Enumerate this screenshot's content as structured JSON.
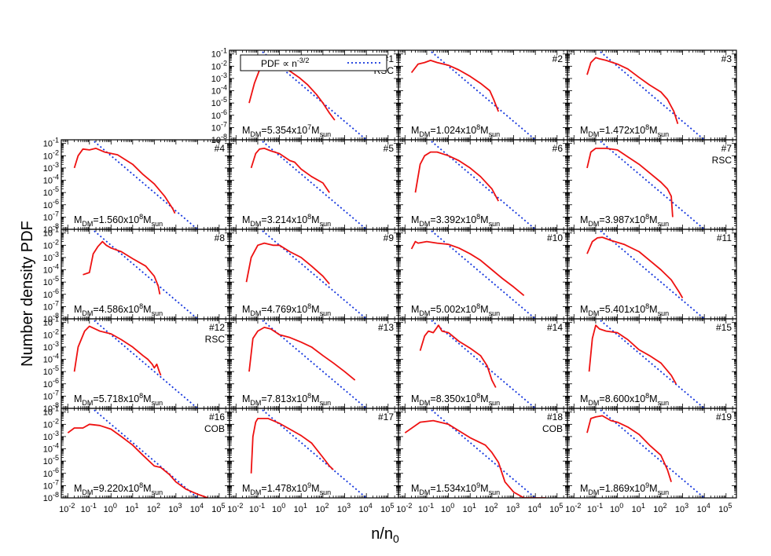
{
  "figure": {
    "ylabel": "Number density PDF",
    "xlabel_main": "n/n",
    "xlabel_sub": "0"
  },
  "legend": {
    "text_main": "PDF ∝ n",
    "text_sup": "-3/2"
  },
  "colors": {
    "pdf": "#ee1111",
    "powerlaw": "#1133dd",
    "axis": "#000000"
  },
  "chart_data": {
    "type": "line",
    "xscale": "log",
    "yscale": "log",
    "xlim": [
      0.005,
      300000
    ],
    "ylim": [
      1e-08,
      0.2
    ],
    "x_ticks": [
      "10^-2",
      "10^-1",
      "10^0",
      "10^1",
      "10^2",
      "10^3",
      "10^4",
      "10^5"
    ],
    "y_ticks": [
      "10^-1",
      "10^-2",
      "10^-3",
      "10^-4",
      "10^-5",
      "10^-6",
      "10^-7",
      "10^-8"
    ],
    "powerlaw": {
      "slope": -1.5,
      "amplitude": 0.01
    },
    "series": [
      {
        "id": "1",
        "annotation": "RSC",
        "mass_mantissa": "5.354",
        "mass_exp": "7",
        "points": [
          [
            0.04,
            1e-05
          ],
          [
            0.07,
            0.0004
          ],
          [
            0.12,
            0.005
          ],
          [
            0.2,
            0.03
          ],
          [
            0.3,
            0.045
          ],
          [
            0.45,
            0.04
          ],
          [
            0.7,
            0.022
          ],
          [
            1.2,
            0.012
          ],
          [
            3,
            0.004
          ],
          [
            8,
            0.0012
          ],
          [
            20,
            0.0003
          ],
          [
            50,
            5e-05
          ],
          [
            100,
            1e-05
          ],
          [
            200,
            1.5e-06
          ],
          [
            350,
            4e-07
          ]
        ]
      },
      {
        "id": "2",
        "annotation": "",
        "mass_mantissa": "1.024",
        "mass_exp": "8",
        "points": [
          [
            0.02,
            0.003
          ],
          [
            0.04,
            0.015
          ],
          [
            0.08,
            0.02
          ],
          [
            0.15,
            0.03
          ],
          [
            0.3,
            0.02
          ],
          [
            1,
            0.012
          ],
          [
            3,
            0.005
          ],
          [
            10,
            0.0015
          ],
          [
            30,
            0.0004
          ],
          [
            80,
            0.0001
          ],
          [
            120,
            2e-05
          ],
          [
            200,
            2e-06
          ]
        ]
      },
      {
        "id": "3",
        "annotation": "",
        "mass_mantissa": "1.472",
        "mass_exp": "8",
        "points": [
          [
            0.04,
            0.002
          ],
          [
            0.06,
            0.02
          ],
          [
            0.1,
            0.05
          ],
          [
            0.15,
            0.04
          ],
          [
            0.3,
            0.03
          ],
          [
            1,
            0.015
          ],
          [
            3,
            0.006
          ],
          [
            10,
            0.0012
          ],
          [
            30,
            0.0003
          ],
          [
            100,
            8e-05
          ],
          [
            200,
            2e-05
          ],
          [
            400,
            2e-06
          ],
          [
            600,
            2e-07
          ]
        ]
      },
      {
        "id": "4",
        "annotation": "",
        "mass_mantissa": "1.560",
        "mass_exp": "8",
        "points": [
          [
            0.02,
            0.001
          ],
          [
            0.03,
            0.01
          ],
          [
            0.05,
            0.035
          ],
          [
            0.1,
            0.03
          ],
          [
            0.2,
            0.04
          ],
          [
            0.5,
            0.02
          ],
          [
            2,
            0.012
          ],
          [
            10,
            0.002
          ],
          [
            30,
            0.0003
          ],
          [
            100,
            5e-05
          ],
          [
            300,
            5e-06
          ],
          [
            700,
            5e-07
          ],
          [
            900,
            2e-07
          ]
        ]
      },
      {
        "id": "5",
        "annotation": "",
        "mass_mantissa": "3.214",
        "mass_exp": "8",
        "points": [
          [
            0.05,
            0.001
          ],
          [
            0.08,
            0.015
          ],
          [
            0.12,
            0.035
          ],
          [
            0.2,
            0.04
          ],
          [
            0.4,
            0.025
          ],
          [
            1,
            0.015
          ],
          [
            3,
            0.004
          ],
          [
            5,
            0.003
          ],
          [
            10,
            0.0008
          ],
          [
            30,
            0.0002
          ],
          [
            100,
            6e-05
          ],
          [
            200,
            1e-05
          ]
        ]
      },
      {
        "id": "6",
        "annotation": "",
        "mass_mantissa": "3.392",
        "mass_exp": "8",
        "points": [
          [
            0.03,
            1e-05
          ],
          [
            0.05,
            0.002
          ],
          [
            0.08,
            0.01
          ],
          [
            0.15,
            0.02
          ],
          [
            0.3,
            0.02
          ],
          [
            1,
            0.01
          ],
          [
            3,
            0.004
          ],
          [
            10,
            0.001
          ],
          [
            30,
            0.0002
          ],
          [
            100,
            2e-05
          ],
          [
            200,
            2e-06
          ]
        ]
      },
      {
        "id": "7",
        "annotation": "RSC",
        "mass_mantissa": "3.987",
        "mass_exp": "8",
        "points": [
          [
            0.04,
            0.001
          ],
          [
            0.06,
            0.02
          ],
          [
            0.1,
            0.04
          ],
          [
            0.3,
            0.04
          ],
          [
            1,
            0.03
          ],
          [
            3,
            0.008
          ],
          [
            10,
            0.002
          ],
          [
            30,
            0.0004
          ],
          [
            100,
            7e-05
          ],
          [
            200,
            2e-05
          ],
          [
            300,
            5e-06
          ],
          [
            350,
            1e-07
          ]
        ]
      },
      {
        "id": "8",
        "annotation": "",
        "mass_mantissa": "4.586",
        "mass_exp": "8",
        "points": [
          [
            0.05,
            4e-05
          ],
          [
            0.1,
            6e-05
          ],
          [
            0.15,
            0.002
          ],
          [
            0.25,
            0.008
          ],
          [
            0.4,
            0.02
          ],
          [
            0.6,
            0.01
          ],
          [
            1,
            0.006
          ],
          [
            3,
            0.003
          ],
          [
            10,
            0.0008
          ],
          [
            40,
            0.0002
          ],
          [
            100,
            3e-05
          ],
          [
            150,
            5e-06
          ],
          [
            180,
            1e-06
          ]
        ]
      },
      {
        "id": "9",
        "annotation": "",
        "mass_mantissa": "4.769",
        "mass_exp": "8",
        "points": [
          [
            0.03,
            1e-05
          ],
          [
            0.05,
            0.001
          ],
          [
            0.1,
            0.01
          ],
          [
            0.2,
            0.015
          ],
          [
            0.5,
            0.01
          ],
          [
            1,
            0.01
          ],
          [
            3,
            0.003
          ],
          [
            10,
            0.001
          ],
          [
            30,
            0.0002
          ],
          [
            100,
            3e-05
          ],
          [
            200,
            7e-06
          ]
        ]
      },
      {
        "id": "10",
        "annotation": "",
        "mass_mantissa": "5.002",
        "mass_exp": "8",
        "points": [
          [
            0.02,
            0.005
          ],
          [
            0.03,
            0.02
          ],
          [
            0.04,
            0.015
          ],
          [
            0.1,
            0.02
          ],
          [
            0.3,
            0.015
          ],
          [
            1,
            0.012
          ],
          [
            3,
            0.006
          ],
          [
            10,
            0.002
          ],
          [
            30,
            0.0006
          ],
          [
            100,
            0.0001
          ],
          [
            300,
            2e-05
          ],
          [
            1000,
            4e-06
          ],
          [
            3000,
            8e-07
          ]
        ]
      },
      {
        "id": "11",
        "annotation": "",
        "mass_mantissa": "5.401",
        "mass_exp": "8",
        "points": [
          [
            0.04,
            0.002
          ],
          [
            0.07,
            0.02
          ],
          [
            0.12,
            0.04
          ],
          [
            0.2,
            0.045
          ],
          [
            0.5,
            0.025
          ],
          [
            2,
            0.012
          ],
          [
            10,
            0.003
          ],
          [
            30,
            0.0006
          ],
          [
            100,
            0.0001
          ],
          [
            300,
            1.5e-05
          ],
          [
            700,
            1.5e-06
          ],
          [
            1000,
            5e-07
          ]
        ]
      },
      {
        "id": "12",
        "annotation": "RSC",
        "mass_mantissa": "5.718",
        "mass_exp": "8",
        "points": [
          [
            0.02,
            1e-05
          ],
          [
            0.03,
            0.001
          ],
          [
            0.06,
            0.02
          ],
          [
            0.1,
            0.05
          ],
          [
            0.3,
            0.02
          ],
          [
            1,
            0.012
          ],
          [
            3,
            0.004
          ],
          [
            10,
            0.001
          ],
          [
            30,
            0.0002
          ],
          [
            50,
            0.0001
          ],
          [
            80,
            4e-05
          ],
          [
            100,
            2e-05
          ],
          [
            130,
            4e-05
          ],
          [
            170,
            1e-05
          ],
          [
            200,
            5e-06
          ]
        ]
      },
      {
        "id": "13",
        "annotation": "",
        "mass_mantissa": "7.813",
        "mass_exp": "8",
        "points": [
          [
            0.04,
            1e-05
          ],
          [
            0.06,
            0.005
          ],
          [
            0.1,
            0.02
          ],
          [
            0.2,
            0.04
          ],
          [
            0.4,
            0.03
          ],
          [
            1,
            0.01
          ],
          [
            3,
            0.006
          ],
          [
            10,
            0.0025
          ],
          [
            30,
            0.001
          ],
          [
            100,
            0.0002
          ],
          [
            300,
            5e-05
          ],
          [
            1000,
            1e-05
          ],
          [
            3000,
            2e-06
          ]
        ]
      },
      {
        "id": "14",
        "annotation": "",
        "mass_mantissa": "8.350",
        "mass_exp": "8",
        "points": [
          [
            0.05,
            0.0005
          ],
          [
            0.08,
            0.008
          ],
          [
            0.12,
            0.02
          ],
          [
            0.2,
            0.015
          ],
          [
            0.35,
            0.06
          ],
          [
            0.5,
            0.02
          ],
          [
            1,
            0.015
          ],
          [
            3,
            0.003
          ],
          [
            10,
            0.0008
          ],
          [
            30,
            0.0002
          ],
          [
            60,
            3e-05
          ],
          [
            100,
            2e-06
          ],
          [
            150,
            5e-07
          ]
        ]
      },
      {
        "id": "15",
        "annotation": "",
        "mass_mantissa": "8.600",
        "mass_exp": "8",
        "points": [
          [
            0.05,
            1e-05
          ],
          [
            0.07,
            0.005
          ],
          [
            0.1,
            0.06
          ],
          [
            0.15,
            0.03
          ],
          [
            0.3,
            0.02
          ],
          [
            1,
            0.015
          ],
          [
            3,
            0.004
          ],
          [
            10,
            0.0006
          ],
          [
            30,
            0.0002
          ],
          [
            100,
            5e-05
          ],
          [
            300,
            5e-06
          ],
          [
            500,
            1e-06
          ]
        ]
      },
      {
        "id": "16",
        "annotation": "COB",
        "mass_mantissa": "9.220",
        "mass_exp": "8",
        "points": [
          [
            0.01,
            0.002
          ],
          [
            0.02,
            0.005
          ],
          [
            0.05,
            0.005
          ],
          [
            0.1,
            0.01
          ],
          [
            0.3,
            0.008
          ],
          [
            1,
            0.004
          ],
          [
            3,
            0.001
          ],
          [
            10,
            0.0002
          ],
          [
            30,
            3e-05
          ],
          [
            100,
            4e-06
          ],
          [
            200,
            3e-06
          ],
          [
            500,
            8e-07
          ],
          [
            1000,
            2e-07
          ],
          [
            3000,
            5e-08
          ],
          [
            10000,
            2e-08
          ],
          [
            30000,
            1e-08
          ]
        ]
      },
      {
        "id": "17",
        "annotation": "",
        "mass_mantissa": "1.478",
        "mass_exp": "9",
        "points": [
          [
            0.05,
            1e-06
          ],
          [
            0.06,
            0.001
          ],
          [
            0.08,
            0.015
          ],
          [
            0.1,
            0.03
          ],
          [
            0.3,
            0.03
          ],
          [
            1,
            0.012
          ],
          [
            3,
            0.004
          ],
          [
            10,
            0.0012
          ],
          [
            30,
            0.0003
          ],
          [
            100,
            2e-05
          ],
          [
            200,
            4e-06
          ],
          [
            300,
            2e-06
          ]
        ]
      },
      {
        "id": "18",
        "annotation": "COB",
        "mass_mantissa": "1.534",
        "mass_exp": "9",
        "points": [
          [
            0.01,
            0.002
          ],
          [
            0.05,
            0.015
          ],
          [
            0.2,
            0.02
          ],
          [
            1,
            0.01
          ],
          [
            3,
            0.003
          ],
          [
            10,
            0.0008
          ],
          [
            50,
            0.0002
          ],
          [
            100,
            5e-05
          ],
          [
            200,
            8e-06
          ],
          [
            400,
            2e-07
          ],
          [
            1000,
            3e-08
          ],
          [
            3000,
            1e-08
          ],
          [
            30000,
            1e-08
          ]
        ]
      },
      {
        "id": "19",
        "annotation": "",
        "mass_mantissa": "1.869",
        "mass_exp": "9",
        "points": [
          [
            0.04,
            0.002
          ],
          [
            0.06,
            0.03
          ],
          [
            0.1,
            0.04
          ],
          [
            0.2,
            0.05
          ],
          [
            0.5,
            0.02
          ],
          [
            1,
            0.015
          ],
          [
            3,
            0.006
          ],
          [
            10,
            0.0015
          ],
          [
            30,
            0.0002
          ],
          [
            100,
            3e-05
          ],
          [
            200,
            2e-06
          ],
          [
            300,
            2e-07
          ]
        ]
      }
    ]
  }
}
